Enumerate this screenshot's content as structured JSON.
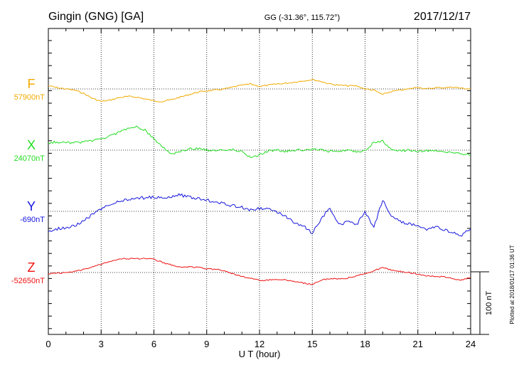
{
  "header": {
    "title": "Gingin (GNG)  [GA]",
    "center": "GG (-31.36°, 115.72°)",
    "date": "2017/12/17"
  },
  "footer": {
    "plotted": "Plotted at 2018/01/17 01:36 UT"
  },
  "chart_data": {
    "type": "line",
    "xlabel": "U T (hour)",
    "xlim": [
      0,
      24
    ],
    "x_ticks": [
      0,
      3,
      6,
      9,
      12,
      15,
      18,
      21,
      24
    ],
    "grid": true,
    "scale_bar_label": "100 nT",
    "scale_bar_nT": 100,
    "series": [
      {
        "name": "F",
        "baseline_label": "57900nT",
        "baseline_nT": 57900,
        "color": "#f0aa00",
        "x": [
          0,
          0.5,
          1,
          1.5,
          2,
          2.5,
          3,
          3.5,
          4,
          4.5,
          5,
          5.5,
          6,
          6.5,
          7,
          7.5,
          8,
          8.5,
          9,
          9.5,
          10,
          10.5,
          11,
          11.5,
          12,
          12.5,
          13,
          13.5,
          14,
          14.5,
          15,
          15.5,
          16,
          16.5,
          17,
          17.5,
          18,
          18.5,
          19,
          19.5,
          20,
          20.5,
          21,
          21.5,
          22,
          22.5,
          23,
          23.5,
          24
        ],
        "y": [
          57905,
          57902,
          57900,
          57898,
          57893,
          57885,
          57880,
          57882,
          57886,
          57888,
          57887,
          57884,
          57881,
          57880,
          57883,
          57887,
          57891,
          57895,
          57897,
          57898,
          57900,
          57903,
          57906,
          57908,
          57904,
          57906,
          57908,
          57909,
          57911,
          57913,
          57915,
          57912,
          57908,
          57906,
          57905,
          57905,
          57900,
          57898,
          57891,
          57896,
          57898,
          57900,
          57903,
          57900,
          57902,
          57902,
          57903,
          57901,
          57900
        ]
      },
      {
        "name": "X",
        "baseline_label": "24070nT",
        "baseline_nT": 24070,
        "color": "#22dd22",
        "x": [
          0,
          0.5,
          1,
          1.5,
          2,
          2.5,
          3,
          3.5,
          4,
          4.5,
          5,
          5.5,
          6,
          6.5,
          7,
          7.5,
          8,
          8.5,
          9,
          9.5,
          10,
          10.5,
          11,
          11.5,
          12,
          12.5,
          13,
          13.5,
          14,
          14.5,
          15,
          15.5,
          16,
          16.5,
          17,
          17.5,
          18,
          18.5,
          19,
          19.5,
          20,
          20.5,
          21,
          21.5,
          22,
          22.5,
          23,
          23.5,
          24
        ],
        "y": [
          24082,
          24083,
          24082,
          24082,
          24083,
          24085,
          24088,
          24093,
          24098,
          24104,
          24107,
          24102,
          24088,
          24075,
          24063,
          24068,
          24072,
          24073,
          24070,
          24070,
          24071,
          24071,
          24068,
          24058,
          24063,
          24069,
          24070,
          24068,
          24070,
          24070,
          24071,
          24070,
          24068,
          24069,
          24070,
          24067,
          24070,
          24082,
          24084,
          24070,
          24069,
          24070,
          24068,
          24069,
          24070,
          24066,
          24067,
          24064,
          24062
        ]
      },
      {
        "name": "Y",
        "baseline_label": "-690nT",
        "baseline_nT": -690,
        "color": "#1515dd",
        "x": [
          0,
          0.5,
          1,
          1.5,
          2,
          2.5,
          3,
          3.5,
          4,
          4.5,
          5,
          5.5,
          6,
          6.5,
          7,
          7.5,
          8,
          8.5,
          9,
          9.5,
          10,
          10.5,
          11,
          11.5,
          12,
          12.5,
          13,
          13.5,
          14,
          14.5,
          15,
          15.5,
          16,
          16.5,
          17,
          17.5,
          18,
          18.5,
          19,
          19.5,
          20,
          20.5,
          21,
          21.5,
          22,
          22.5,
          23,
          23.5,
          24
        ],
        "y": [
          -722,
          -718,
          -716,
          -713,
          -704,
          -696,
          -686,
          -680,
          -675,
          -671,
          -670,
          -668,
          -667,
          -668,
          -666,
          -664,
          -667,
          -670,
          -672,
          -674,
          -678,
          -681,
          -684,
          -688,
          -686,
          -687,
          -690,
          -698,
          -710,
          -712,
          -725,
          -702,
          -685,
          -712,
          -706,
          -712,
          -691,
          -716,
          -672,
          -698,
          -706,
          -710,
          -712,
          -718,
          -714,
          -720,
          -724,
          -728,
          -718
        ]
      },
      {
        "name": "Z",
        "baseline_label": "-52650nT",
        "baseline_nT": -52650,
        "color": "#ee1111",
        "x": [
          0,
          0.5,
          1,
          1.5,
          2,
          2.5,
          3,
          3.5,
          4,
          4.5,
          5,
          5.5,
          6,
          6.5,
          7,
          7.5,
          8,
          8.5,
          9,
          9.5,
          10,
          10.5,
          11,
          11.5,
          12,
          12.5,
          13,
          13.5,
          14,
          14.5,
          15,
          15.5,
          16,
          16.5,
          17,
          17.5,
          18,
          18.5,
          19,
          19.5,
          20,
          20.5,
          21,
          21.5,
          22,
          22.5,
          23,
          23.5,
          24
        ],
        "y": [
          -52652,
          -52651,
          -52650,
          -52648,
          -52645,
          -52641,
          -52637,
          -52632,
          -52628,
          -52628,
          -52628,
          -52628,
          -52629,
          -52634,
          -52638,
          -52641,
          -52641,
          -52642,
          -52644,
          -52645,
          -52647,
          -52652,
          -52656,
          -52659,
          -52663,
          -52662,
          -52661,
          -52662,
          -52664,
          -52667,
          -52669,
          -52662,
          -52660,
          -52660,
          -52659,
          -52655,
          -52652,
          -52647,
          -52642,
          -52646,
          -52648,
          -52650,
          -52653,
          -52655,
          -52656,
          -52657,
          -52660,
          -52662,
          -52658
        ]
      }
    ]
  }
}
